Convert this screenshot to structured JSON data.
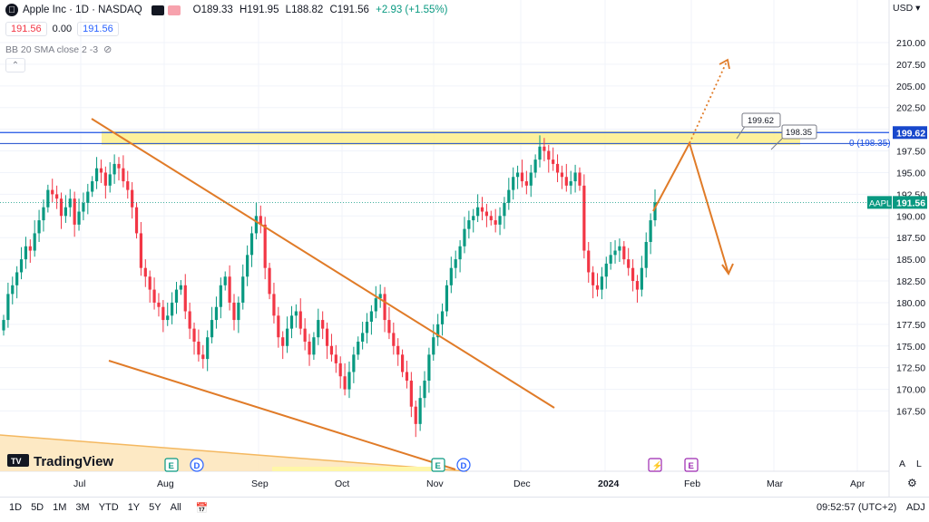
{
  "legend": {
    "symbol_title": "Apple Inc · 1D · NASDAQ",
    "open": "O189.33",
    "high": "H191.95",
    "low": "L188.82",
    "close": "C191.56",
    "change": "+2.93 (+1.55%)"
  },
  "price_row": {
    "bid": "191.56",
    "spread": "0.00",
    "ask": "191.56"
  },
  "indicator": {
    "label": "BB 20 SMA close 2 -3"
  },
  "currency": "USD",
  "bottom_bar": {
    "timeframes": [
      "1D",
      "5D",
      "1M",
      "3M",
      "YTD",
      "1Y",
      "5Y",
      "All"
    ],
    "clock": "09:52:57 (UTC+2)",
    "adj": "ADJ"
  },
  "axis_buttons": {
    "auto": "A",
    "log": "L"
  },
  "logo_text": "TradingView",
  "colors": {
    "up": "#089981",
    "down": "#f23645",
    "trend": "#e07b28",
    "zone": "#fdef8a",
    "hline": "#1e53e5"
  },
  "chart_data": {
    "type": "candlestick",
    "y_axis_ticks": [
      "210.00",
      "207.50",
      "205.00",
      "202.50",
      "200.00",
      "197.50",
      "195.00",
      "192.50",
      "190.00",
      "187.50",
      "185.00",
      "182.50",
      "180.00",
      "177.50",
      "175.00",
      "172.50",
      "170.00",
      "167.50"
    ],
    "x_axis_ticks": [
      "Jul",
      "Aug",
      "Sep",
      "Oct",
      "Nov",
      "Dec",
      "2024",
      "Feb",
      "Mar",
      "Apr"
    ],
    "ylim": [
      165,
      211
    ],
    "last_price_label": "AAPL",
    "last_price": "191.56",
    "level_price": "199.62",
    "level_label": "0 (198.35)",
    "callouts": [
      "199.62",
      "198.35"
    ],
    "resistance_zone": [
      198.2,
      199.8
    ],
    "candles_close": [
      178,
      181,
      182,
      183.5,
      185,
      186.5,
      186,
      188,
      189.5,
      191,
      193,
      192.5,
      192,
      190,
      191,
      192,
      189,
      190.5,
      191.5,
      192.8,
      194,
      195.5,
      195,
      193.5,
      194.8,
      196,
      195.5,
      194,
      193,
      191,
      188,
      184,
      183,
      181.5,
      180,
      179.5,
      178,
      178.5,
      180,
      181.5,
      182,
      179,
      177,
      175.5,
      174,
      173.5,
      176,
      178,
      179.5,
      182,
      183,
      180,
      178,
      180,
      183,
      185.5,
      188,
      190,
      189,
      184,
      181,
      178.5,
      176,
      175,
      177,
      178.5,
      179,
      177,
      175.5,
      174,
      176,
      178,
      177,
      175,
      174,
      173,
      171.5,
      170,
      172,
      174,
      175.5,
      176.5,
      177.8,
      179,
      180.5,
      181,
      178,
      176.5,
      175,
      174,
      172,
      171,
      168,
      166,
      169,
      171,
      174,
      176,
      177.5,
      179,
      182,
      184,
      185,
      186.5,
      188.5,
      189.5,
      190,
      191,
      190.5,
      190,
      189.5,
      189,
      190,
      191.5,
      193,
      194.5,
      195,
      194,
      193.5,
      195,
      196.5,
      198,
      197.5,
      196.5,
      196,
      195,
      194.5,
      193.5,
      194,
      195,
      193.5,
      186,
      183.5,
      182,
      181.5,
      183,
      184.5,
      185.5,
      186,
      186.5,
      185,
      184,
      182.5,
      181.5,
      184,
      187,
      189.5,
      191.56
    ],
    "annotations": [
      "descending-trendline-upper",
      "descending-trendline-lower",
      "projected-breakout-path",
      "projected-drop-path"
    ]
  }
}
